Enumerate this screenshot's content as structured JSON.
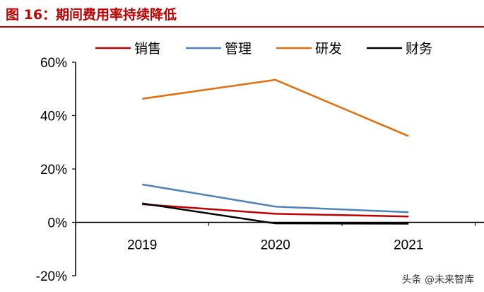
{
  "title": "图 16：期间费用率持续降低",
  "watermark": "头条 @未来智库",
  "chart_data": {
    "type": "line",
    "title": "图 16：期间费用率持续降低",
    "xlabel": "",
    "ylabel": "",
    "categories": [
      "2019",
      "2020",
      "2021"
    ],
    "ylim": [
      -20,
      60
    ],
    "yticks": [
      -20,
      0,
      20,
      40,
      60
    ],
    "ytick_labels": [
      "-20%",
      "0%",
      "20%",
      "40%",
      "60%"
    ],
    "grid": false,
    "legend_position": "top",
    "series": [
      {
        "name": "销售",
        "color": "#c00000",
        "values": [
          6.8,
          3.2,
          2.2
        ]
      },
      {
        "name": "管理",
        "color": "#4f81bd",
        "values": [
          14.2,
          5.9,
          3.8
        ]
      },
      {
        "name": "研发",
        "color": "#e46c0a",
        "values": [
          46.3,
          53.4,
          32.3
        ]
      },
      {
        "name": "财务",
        "color": "#000000",
        "values": [
          7.1,
          -0.4,
          -0.5
        ]
      }
    ]
  }
}
